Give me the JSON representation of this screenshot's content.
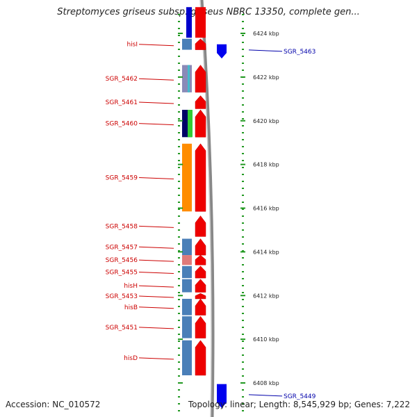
{
  "title": "Streptomyces griseus subsp. griseus NBRC 13350, complete gen...",
  "accession": "Accession: NC_010572",
  "topology": "Topology: linear; Length: 8,545,929 bp; Genes: 7,222",
  "kbp_labels": [
    {
      "text": "6424 kbp",
      "kbp": 6424
    },
    {
      "text": "6422 kbp",
      "kbp": 6422
    },
    {
      "text": "6420 kbp",
      "kbp": 6420
    },
    {
      "text": "6418 kbp",
      "kbp": 6418
    },
    {
      "text": "6416 kbp",
      "kbp": 6416
    },
    {
      "text": "6414 kbp",
      "kbp": 6414
    },
    {
      "text": "6412 kbp",
      "kbp": 6412
    },
    {
      "text": "6410 kbp",
      "kbp": 6410
    },
    {
      "text": "6408 kbp",
      "kbp": 6408
    }
  ],
  "genes_left": [
    {
      "label": "hisI",
      "start_kbp": 6423.75,
      "end_kbp": 6423.25,
      "color": "#4a7fb8"
    },
    {
      "label": "SGR_5462",
      "start_kbp": 6422.55,
      "end_kbp": 6421.3,
      "color": "#8a8ab8"
    },
    {
      "label": "SGR_5461",
      "start_kbp": 6421.15,
      "end_kbp": 6420.55,
      "color": ""
    },
    {
      "label": "SGR_5460",
      "start_kbp": 6420.5,
      "end_kbp": 6419.25,
      "color": "#000066"
    },
    {
      "label": "SGR_5459",
      "start_kbp": 6418.95,
      "end_kbp": 6415.85,
      "color": "#ff8c00"
    },
    {
      "label": "SGR_5458",
      "start_kbp": 6415.65,
      "end_kbp": 6414.7,
      "color": ""
    },
    {
      "label": "SGR_5457",
      "start_kbp": 6414.6,
      "end_kbp": 6413.85,
      "color": "#4a7fb8"
    },
    {
      "label": "SGR_5456",
      "start_kbp": 6413.85,
      "end_kbp": 6413.4,
      "color": "#e07a7a"
    },
    {
      "label": "SGR_5455",
      "start_kbp": 6413.35,
      "end_kbp": 6412.8,
      "color": "#4a7fb8"
    },
    {
      "label": "hisH",
      "start_kbp": 6412.75,
      "end_kbp": 6412.15,
      "color": "#4a7fb8"
    },
    {
      "label": "SGR_5453",
      "start_kbp": 6412.1,
      "end_kbp": 6411.85,
      "color": ""
    },
    {
      "label": "hisB",
      "start_kbp": 6411.85,
      "end_kbp": 6411.1,
      "color": "#4a7fb8"
    },
    {
      "label": "SGR_5451",
      "start_kbp": 6411.05,
      "end_kbp": 6410.05,
      "color": "#4a7fb8"
    },
    {
      "label": "hisD",
      "start_kbp": 6409.95,
      "end_kbp": 6408.35,
      "color": "#4a7fb8"
    }
  ],
  "genes_right": [
    {
      "label": "SGR_5463",
      "start_kbp": 6423.5,
      "end_kbp": 6422.85,
      "color": "#0000ee"
    },
    {
      "label": "SGR_5449",
      "start_kbp": 6407.95,
      "end_kbp": 6406.85,
      "color": "#0000ee"
    }
  ]
}
